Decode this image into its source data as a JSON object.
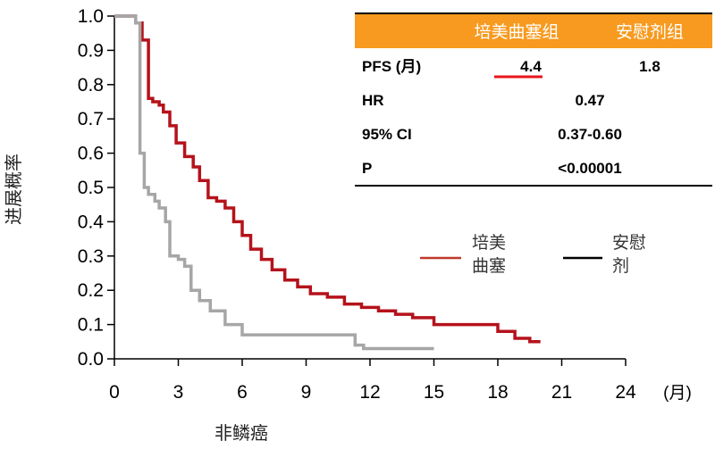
{
  "chart_data": {
    "type": "line",
    "xlabel": "非鳞癌",
    "ylabel": "进展概率",
    "x_unit": "(月)",
    "xlim": [
      0,
      24
    ],
    "ylim": [
      0,
      1.0
    ],
    "x_ticks": [
      "0",
      "3",
      "6",
      "9",
      "12",
      "15",
      "18",
      "21",
      "24"
    ],
    "y_ticks": [
      "0.0",
      "0.1",
      "0.2",
      "0.3",
      "0.4",
      "0.5",
      "0.6",
      "0.7",
      "0.8",
      "0.9",
      "1.0"
    ],
    "legend": {
      "placement": "right",
      "entries": [
        {
          "label_lines": [
            "培美",
            "曲塞"
          ],
          "color": "#c0392b"
        },
        {
          "label_lines": [
            "安慰",
            "剂"
          ],
          "color": "#000000"
        }
      ]
    },
    "series": [
      {
        "name": "培美曲塞",
        "color": "#b5121b",
        "x": [
          0,
          1.0,
          1.3,
          1.6,
          1.8,
          2.1,
          2.3,
          2.6,
          2.9,
          3.3,
          3.7,
          4.0,
          4.4,
          4.8,
          5.2,
          5.6,
          6.0,
          6.4,
          6.9,
          7.4,
          8.0,
          8.6,
          9.2,
          10.0,
          10.8,
          11.6,
          12.4,
          13.2,
          14.0,
          15.0,
          16.0,
          17.0,
          18.0,
          18.8,
          19.5,
          20.0
        ],
        "y": [
          1.0,
          0.98,
          0.93,
          0.76,
          0.75,
          0.74,
          0.72,
          0.68,
          0.63,
          0.59,
          0.56,
          0.52,
          0.47,
          0.46,
          0.44,
          0.4,
          0.36,
          0.32,
          0.29,
          0.26,
          0.23,
          0.21,
          0.19,
          0.18,
          0.16,
          0.15,
          0.14,
          0.13,
          0.12,
          0.1,
          0.1,
          0.1,
          0.08,
          0.06,
          0.05,
          0.05
        ]
      },
      {
        "name": "安慰剂",
        "color": "#a6a6a6",
        "x": [
          0,
          1.0,
          1.2,
          1.4,
          1.6,
          1.9,
          2.1,
          2.4,
          2.6,
          3.0,
          3.3,
          3.6,
          4.0,
          4.5,
          5.2,
          6.0,
          7.0,
          8.5,
          10.0,
          11.3,
          11.7,
          13.0,
          15.0
        ],
        "y": [
          1.0,
          0.98,
          0.6,
          0.5,
          0.48,
          0.46,
          0.44,
          0.4,
          0.3,
          0.29,
          0.27,
          0.2,
          0.17,
          0.14,
          0.1,
          0.07,
          0.07,
          0.07,
          0.07,
          0.04,
          0.03,
          0.03,
          0.03
        ]
      }
    ],
    "table": {
      "header_color": "#f79a1f",
      "headers": [
        "",
        "培美曲塞组",
        "安慰剂组"
      ],
      "rows": [
        {
          "label": "PFS (月)",
          "pem": "4.4",
          "placebo": "1.8"
        },
        {
          "label": "HR",
          "combined": "0.47"
        },
        {
          "label": "95% CI",
          "combined": "0.37-0.60"
        },
        {
          "label": "P",
          "combined": "<0.00001"
        }
      ],
      "highlight_color": "#e8141b"
    }
  }
}
